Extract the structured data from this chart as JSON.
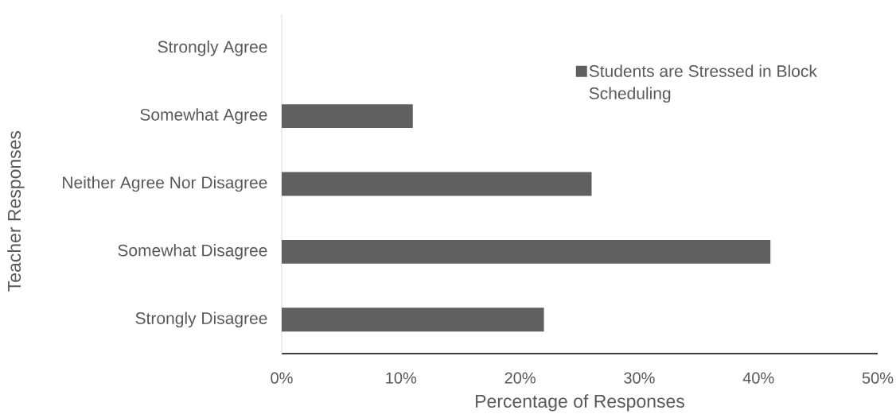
{
  "chart_data": {
    "type": "bar",
    "orientation": "horizontal",
    "xlabel": "Percentage of Responses",
    "ylabel": "Teacher Responses",
    "categories": [
      "Strongly Agree",
      "Somewhat Agree",
      "Neither Agree Nor Disagree",
      "Somewhat Disagree",
      "Strongly Disagree"
    ],
    "series": [
      {
        "name": "Students are Stressed in Block Scheduling",
        "color": "#606060",
        "values": [
          0,
          11,
          26,
          41,
          22
        ]
      }
    ],
    "xlim": [
      0,
      50
    ],
    "xticks": [
      {
        "value": 0,
        "label": "0%"
      },
      {
        "value": 10,
        "label": "10%"
      },
      {
        "value": 20,
        "label": "20%"
      },
      {
        "value": 30,
        "label": "30%"
      },
      {
        "value": 40,
        "label": "40%"
      },
      {
        "value": 50,
        "label": "50%"
      }
    ],
    "legend": "top right"
  }
}
